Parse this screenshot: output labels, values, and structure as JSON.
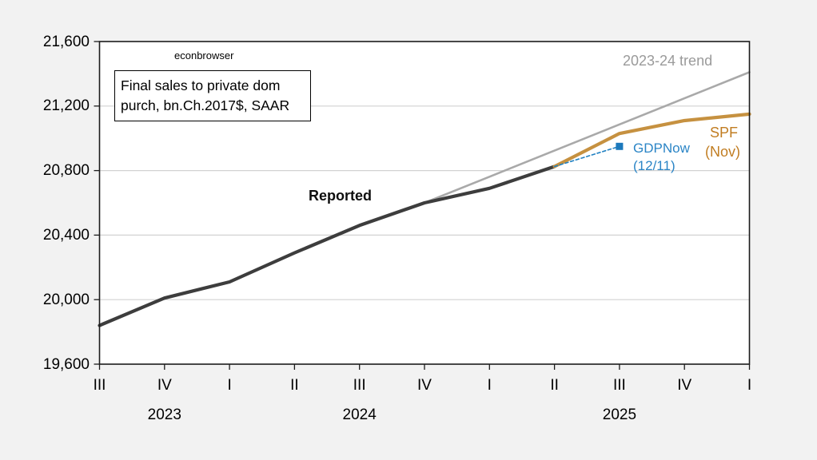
{
  "watermark": "econbrowser",
  "note_box": {
    "line1": "Final sales to private dom",
    "line2": "purch, bn.Ch.2017$, SAAR"
  },
  "labels": {
    "reported": "Reported",
    "trend": "2023-24 trend",
    "spf_line1": "SPF",
    "spf_line2": "(Nov)",
    "gdpnow_line1": "GDPNow",
    "gdpnow_line2": "(12/11)"
  },
  "colors": {
    "page_background": "#f2f2f2",
    "plot_background": "#ffffff",
    "plot_border": "#1c1c1c",
    "gridline": "#d2d2d2",
    "reported_line": "#3d3d3d",
    "trend_line": "#a9a9a9",
    "trend_label": "#9a9a9a",
    "spf_line": "#c69140",
    "spf_label": "#c17d22",
    "gdpnow_line": "#1f80c2",
    "gdpnow_label": "#2b85c6",
    "gdpnow_marker": "#1c79bc"
  },
  "chart_data": {
    "type": "line",
    "title": "Final sales to private dom purch, bn.Ch.2017$, SAAR",
    "xlabel": "",
    "ylabel": "",
    "ylim": [
      19600,
      21600
    ],
    "grid": "horizontal",
    "legend_position": "none (direct line annotations)",
    "x_quarters": [
      "2023Q3",
      "2023Q4",
      "2024Q1",
      "2024Q2",
      "2024Q3",
      "2024Q4",
      "2025Q1",
      "2025Q2",
      "2025Q3",
      "2025Q4",
      "2026Q1"
    ],
    "x_tick_labels": [
      "III",
      "IV",
      "I",
      "II",
      "III",
      "IV",
      "I",
      "II",
      "III",
      "IV",
      "I"
    ],
    "years": [
      {
        "label": "2023",
        "from": 0,
        "to": 2
      },
      {
        "label": "2024",
        "from": 2,
        "to": 6
      },
      {
        "label": "2025",
        "from": 6,
        "to": 10
      }
    ],
    "y_ticks": [
      {
        "value": 19600,
        "label": "19,600"
      },
      {
        "value": 20000,
        "label": "20,000"
      },
      {
        "value": 20400,
        "label": "20,400"
      },
      {
        "value": 20800,
        "label": "20,800"
      },
      {
        "value": 21200,
        "label": "21,200"
      },
      {
        "value": 21600,
        "label": "21,600"
      }
    ],
    "series": [
      {
        "name": "2023-24 trend",
        "color": "#a9a9a9",
        "width": 2.6,
        "start_index": 5,
        "values": [
          20600,
          20762,
          20924,
          21086,
          21248,
          21410
        ]
      },
      {
        "name": "Reported",
        "color": "#3d3d3d",
        "width": 4.2,
        "start_index": 0,
        "values": [
          19840,
          20010,
          20110,
          20290,
          20460,
          20600,
          20690,
          20825
        ]
      },
      {
        "name": "SPF (Nov)",
        "color": "#c69140",
        "width": 4.2,
        "start_index": 7,
        "values": [
          20825,
          21030,
          21110,
          21150
        ]
      },
      {
        "name": "GDPNow (12/11)",
        "color": "#1f80c2",
        "width": 1.6,
        "dash": "4 3",
        "start_index": 7,
        "values": [
          20825,
          20950
        ],
        "marker": "square",
        "marker_size": 9,
        "marker_color": "#1c79bc"
      }
    ]
  }
}
